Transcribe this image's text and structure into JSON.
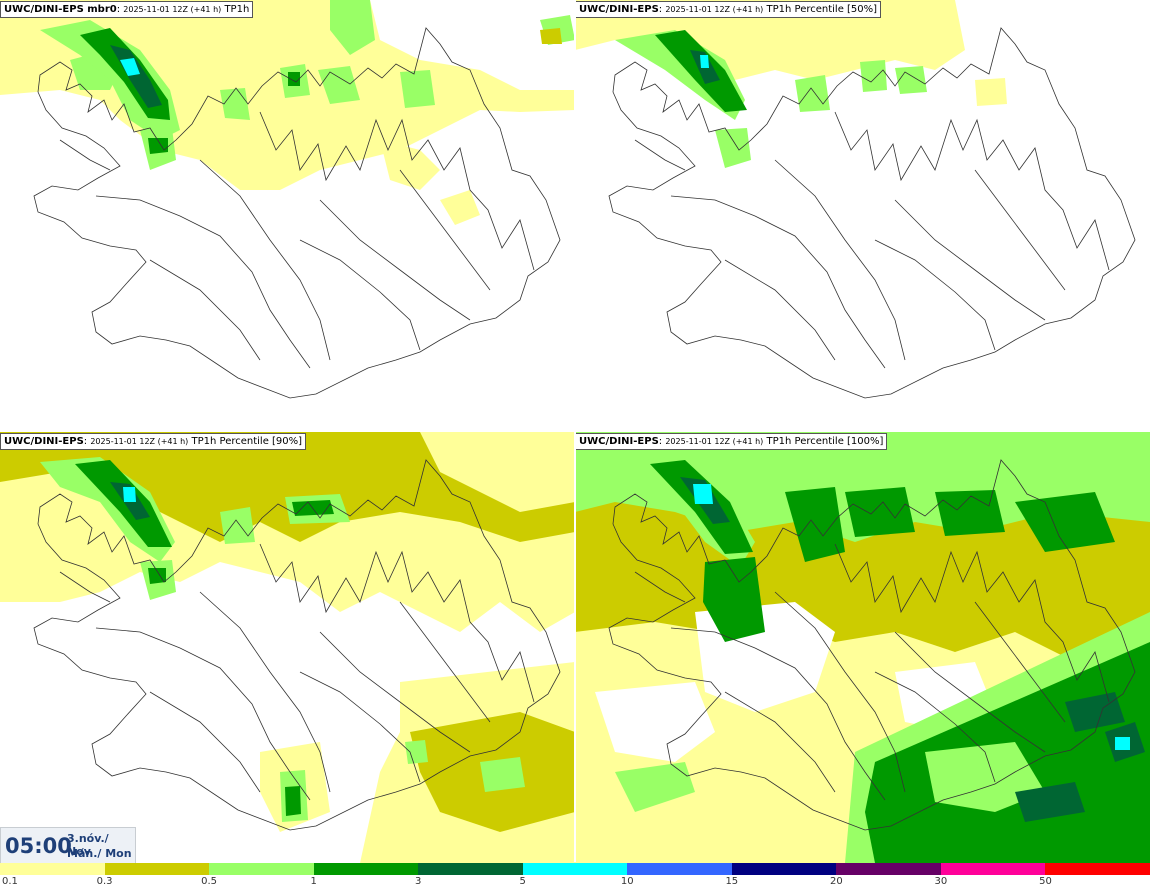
{
  "panels": [
    {
      "model": "UWC/DINI-EPS mbr0",
      "run": "2025-11-01 12Z (+41 h)",
      "field": "TP1h"
    },
    {
      "model": "UWC/DINI-EPS",
      "run": "2025-11-01 12Z (+41 h)",
      "field": "TP1h Percentile [50%]"
    },
    {
      "model": "UWC/DINI-EPS",
      "run": "2025-11-01 12Z (+41 h)",
      "field": "TP1h Percentile [90%]"
    },
    {
      "model": "UWC/DINI-EPS",
      "run": "2025-11-01 12Z (+41 h)",
      "field": "TP1h Percentile [100%]"
    }
  ],
  "valid_time": {
    "time": "05:00",
    "date_line": "3.nóv./ Nov",
    "day_line": "Mán./ Mon"
  },
  "legend": {
    "labels": [
      "0.1",
      "0.3",
      "0.5",
      "1",
      "3",
      "5",
      "10",
      "15",
      "20",
      "30",
      "50"
    ],
    "colors": [
      "#ffff99",
      "#cccc00",
      "#99ff66",
      "#009900",
      "#006633",
      "#00ffff",
      "#3366ff",
      "#000080",
      "#660066",
      "#ff0099",
      "#ff0000"
    ]
  },
  "colors": {
    "light_yellow": "#ffff99",
    "olive": "#cccc00",
    "light_green": "#99ff66",
    "green": "#009900",
    "dark_green": "#006633",
    "cyan": "#00ffff",
    "coast": "#333333",
    "time_text": "#1e3f78"
  }
}
